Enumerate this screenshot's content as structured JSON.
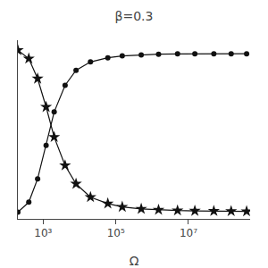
{
  "chart_data": {
    "type": "line",
    "title": "β=0.3",
    "x_label": "Ω",
    "x": [
      200,
      400,
      700,
      1200,
      2000,
      4000,
      8000,
      20000,
      60000,
      150000,
      500000,
      1500000,
      5000000,
      15000000,
      50000000,
      150000000,
      400000000
    ],
    "series": [
      {
        "color": "#111111",
        "marker": "circle",
        "line_style": "solid",
        "values": [
          0.02,
          0.08,
          0.22,
          0.42,
          0.62,
          0.78,
          0.87,
          0.92,
          0.945,
          0.956,
          0.962,
          0.966,
          0.968,
          0.969,
          0.969,
          0.969,
          0.969
        ]
      },
      {
        "color": "#111111",
        "marker": "star",
        "line_style": "solid",
        "values": [
          0.99,
          0.94,
          0.82,
          0.65,
          0.47,
          0.3,
          0.19,
          0.11,
          0.072,
          0.052,
          0.04,
          0.034,
          0.03,
          0.028,
          0.027,
          0.026,
          0.025
        ]
      }
    ],
    "log": "x",
    "xlim": [
      200,
      500000000.0
    ],
    "xticks": [
      {
        "value": 1000,
        "label": "10³"
      },
      {
        "value": 100000,
        "label": "10⁵"
      },
      {
        "value": 10000000,
        "label": "10⁷"
      }
    ],
    "ylim": [
      -0.02,
      1.05
    ],
    "yticks": [],
    "tick_labels": "x",
    "grid": false
  }
}
